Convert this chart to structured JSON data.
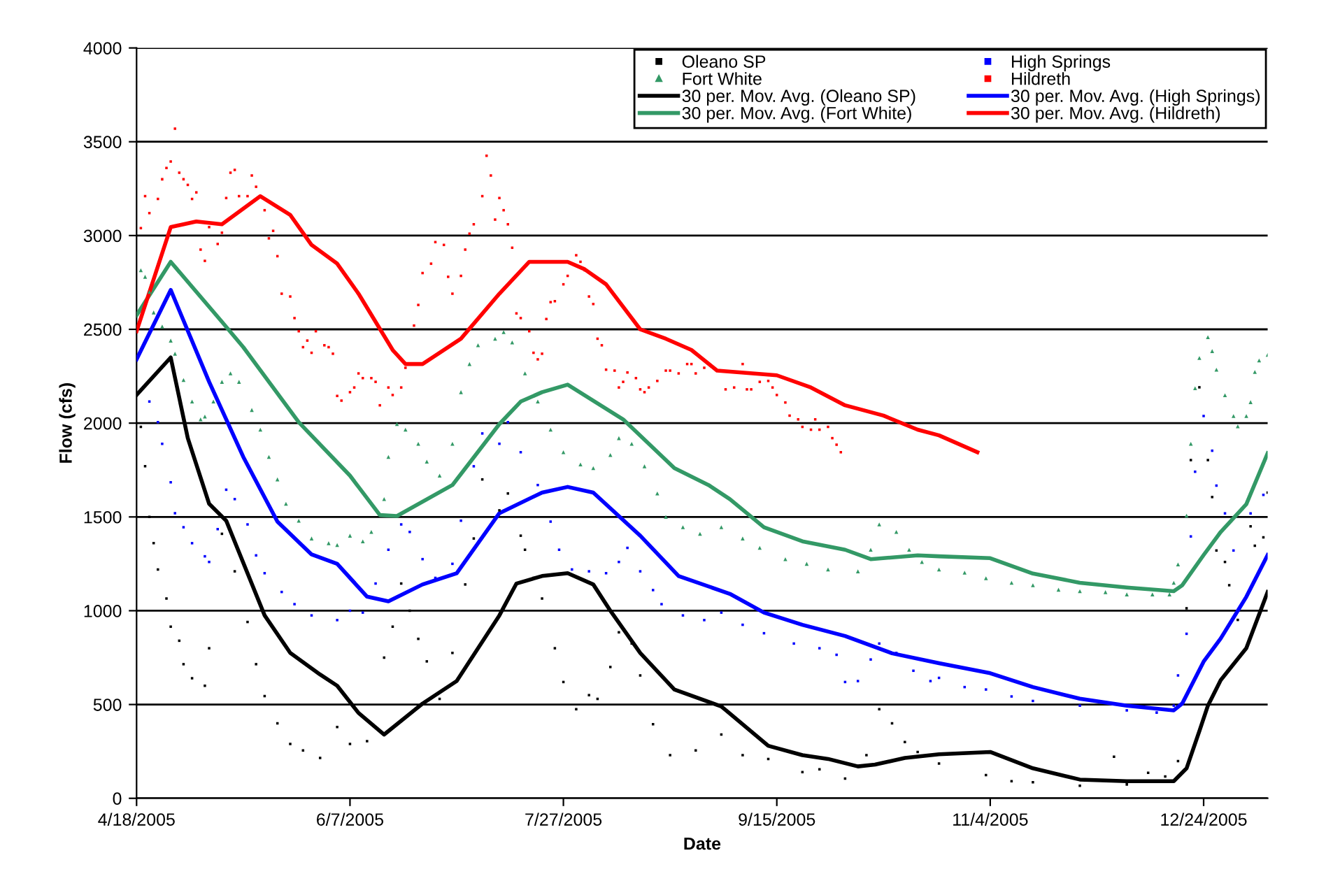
{
  "chart_data": {
    "type": "scatter",
    "xlabel": "Date",
    "ylabel": "Flow (cfs)",
    "xlim": [
      "2005-04-18",
      "2006-01-08"
    ],
    "xticks": [
      {
        "value": "2005-04-18",
        "label": "4/18/2005"
      },
      {
        "value": "2005-06-07",
        "label": "6/7/2005"
      },
      {
        "value": "2005-07-27",
        "label": "7/27/2005"
      },
      {
        "value": "2005-09-15",
        "label": "9/15/2005"
      },
      {
        "value": "2005-11-04",
        "label": "11/4/2005"
      },
      {
        "value": "2005-12-24",
        "label": "12/24/2005"
      }
    ],
    "ylim": [
      0,
      4000
    ],
    "yticks": [
      0,
      500,
      1000,
      1500,
      2000,
      2500,
      3000,
      3500,
      4000
    ],
    "grid": "y",
    "legend": "top right",
    "series": [
      {
        "name": "Oleano SP",
        "marker": "square",
        "color": "#000000",
        "x": [
          "2005-04-19",
          "2005-04-20",
          "2005-04-21",
          "2005-04-22",
          "2005-04-23",
          "2005-04-25",
          "2005-04-26",
          "2005-04-28",
          "2005-04-29",
          "2005-05-01",
          "2005-05-04",
          "2005-05-05",
          "2005-05-08",
          "2005-05-11",
          "2005-05-14",
          "2005-05-16",
          "2005-05-18",
          "2005-05-21",
          "2005-05-24",
          "2005-05-27",
          "2005-05-31",
          "2005-06-04",
          "2005-06-07",
          "2005-06-11",
          "2005-06-15",
          "2005-06-17",
          "2005-06-19",
          "2005-06-21",
          "2005-06-23",
          "2005-06-25",
          "2005-06-28",
          "2005-07-01",
          "2005-07-04",
          "2005-07-06",
          "2005-07-08",
          "2005-07-12",
          "2005-07-14",
          "2005-07-17",
          "2005-07-18",
          "2005-07-20",
          "2005-07-22",
          "2005-07-25",
          "2005-07-27",
          "2005-07-30",
          "2005-08-02",
          "2005-08-04",
          "2005-08-07",
          "2005-08-09",
          "2005-08-12",
          "2005-08-14",
          "2005-08-17",
          "2005-08-21",
          "2005-08-27",
          "2005-09-02",
          "2005-09-07",
          "2005-09-13",
          "2005-09-21",
          "2005-09-25",
          "2005-10-01",
          "2005-10-06",
          "2005-10-09",
          "2005-10-12",
          "2005-10-15",
          "2005-10-18",
          "2005-10-23",
          "2005-11-03",
          "2005-11-09",
          "2005-11-14",
          "2005-11-25",
          "2005-12-03",
          "2005-12-06",
          "2005-12-11",
          "2005-12-15",
          "2005-12-18",
          "2005-12-20",
          "2005-12-21",
          "2005-12-23",
          "2005-12-25",
          "2005-12-26",
          "2005-12-27",
          "2005-12-29",
          "2005-12-30",
          "2006-01-01",
          "2006-01-04",
          "2006-01-05",
          "2006-01-07",
          "2006-01-08"
        ],
        "values": [
          1980,
          1770,
          1500,
          1360,
          1220,
          1065,
          915,
          840,
          715,
          640,
          600,
          800,
          1410,
          1210,
          940,
          715,
          545,
          400,
          290,
          255,
          215,
          380,
          290,
          305,
          750,
          915,
          1145,
          1000,
          850,
          730,
          530,
          775,
          1140,
          1385,
          1700,
          1535,
          1625,
          1400,
          1325,
          1175,
          1065,
          800,
          620,
          475,
          550,
          530,
          700,
          885,
          825,
          655,
          395,
          230,
          255,
          340,
          230,
          210,
          140,
          155,
          105,
          230,
          475,
          400,
          300,
          247,
          185,
          124,
          91,
          86,
          67,
          222,
          74,
          136,
          116,
          198,
          1013,
          1803,
          2191,
          1803,
          1606,
          1321,
          1260,
          1136,
          951,
          1450,
          1346,
          1391,
          1630
        ]
      },
      {
        "name": "Fort White",
        "marker": "triangle",
        "color": "#339966",
        "x": [
          "2005-04-19",
          "2005-04-20",
          "2005-04-21",
          "2005-04-22",
          "2005-04-24",
          "2005-04-26",
          "2005-04-27",
          "2005-04-29",
          "2005-05-01",
          "2005-05-03",
          "2005-05-04",
          "2005-05-06",
          "2005-05-08",
          "2005-05-10",
          "2005-05-12",
          "2005-05-15",
          "2005-05-17",
          "2005-05-19",
          "2005-05-21",
          "2005-05-23",
          "2005-05-26",
          "2005-05-29",
          "2005-06-02",
          "2005-06-04",
          "2005-06-07",
          "2005-06-10",
          "2005-06-12",
          "2005-06-15",
          "2005-06-16",
          "2005-06-18",
          "2005-06-20",
          "2005-06-23",
          "2005-06-25",
          "2005-06-28",
          "2005-07-01",
          "2005-07-03",
          "2005-07-05",
          "2005-07-07",
          "2005-07-11",
          "2005-07-13",
          "2005-07-15",
          "2005-07-18",
          "2005-07-21",
          "2005-07-24",
          "2005-07-27",
          "2005-07-31",
          "2005-08-03",
          "2005-08-07",
          "2005-08-09",
          "2005-08-12",
          "2005-08-15",
          "2005-08-18",
          "2005-08-20",
          "2005-08-24",
          "2005-08-28",
          "2005-09-02",
          "2005-09-07",
          "2005-09-11",
          "2005-09-17",
          "2005-09-22",
          "2005-09-27",
          "2005-10-04",
          "2005-10-07",
          "2005-10-09",
          "2005-10-13",
          "2005-10-16",
          "2005-10-19",
          "2005-10-23",
          "2005-10-29",
          "2005-11-03",
          "2005-11-09",
          "2005-11-14",
          "2005-11-20",
          "2005-11-25",
          "2005-12-01",
          "2005-12-06",
          "2005-12-12",
          "2005-12-16",
          "2005-12-17",
          "2005-12-18",
          "2005-12-20",
          "2005-12-21",
          "2005-12-22",
          "2005-12-23",
          "2005-12-25",
          "2005-12-26",
          "2005-12-27",
          "2005-12-29",
          "2005-12-31",
          "2006-01-01",
          "2006-01-03",
          "2006-01-04",
          "2006-01-05",
          "2006-01-06",
          "2006-01-08"
        ],
        "values": [
          2815,
          2780,
          2700,
          2590,
          2515,
          2440,
          2370,
          2230,
          2115,
          2020,
          2035,
          2115,
          2220,
          2265,
          2220,
          2070,
          1965,
          1820,
          1700,
          1570,
          1480,
          1385,
          1360,
          1350,
          1400,
          1370,
          1420,
          1595,
          1820,
          1995,
          1965,
          1890,
          1795,
          1720,
          1890,
          2165,
          2315,
          2415,
          2450,
          2485,
          2430,
          2265,
          2115,
          1965,
          1845,
          1780,
          1760,
          1830,
          1920,
          1890,
          1770,
          1625,
          1500,
          1445,
          1410,
          1445,
          1385,
          1335,
          1275,
          1250,
          1220,
          1210,
          1325,
          1460,
          1420,
          1325,
          1260,
          1220,
          1203,
          1173,
          1149,
          1136,
          1112,
          1104,
          1099,
          1087,
          1087,
          1087,
          1149,
          1247,
          1507,
          1890,
          2186,
          2347,
          2458,
          2384,
          2285,
          2149,
          2038,
          1983,
          2038,
          2112,
          2273,
          2334,
          2364
        ]
      },
      {
        "name": "30 per. Mov. Avg. (Oleano SP)",
        "type": "line",
        "marker": "none",
        "color": "#000000",
        "x": [
          "2005-04-18",
          "2005-04-26",
          "2005-04-30",
          "2005-05-05",
          "2005-05-09",
          "2005-05-18",
          "2005-05-24",
          "2005-05-31",
          "2005-06-04",
          "2005-06-09",
          "2005-06-15",
          "2005-06-24",
          "2005-07-02",
          "2005-07-12",
          "2005-07-16",
          "2005-07-22",
          "2005-07-28",
          "2005-08-03",
          "2005-08-07",
          "2005-08-14",
          "2005-08-22",
          "2005-09-02",
          "2005-09-13",
          "2005-09-21",
          "2005-09-27",
          "2005-10-04",
          "2005-10-08",
          "2005-10-15",
          "2005-10-23",
          "2005-11-04",
          "2005-11-14",
          "2005-11-25",
          "2005-12-06",
          "2005-12-17",
          "2005-12-20",
          "2005-12-23",
          "2005-12-25",
          "2005-12-28",
          "2006-01-03",
          "2006-01-08"
        ],
        "values": [
          2150,
          2350,
          1920,
          1570,
          1480,
          975,
          775,
          660,
          600,
          455,
          340,
          505,
          625,
          975,
          1145,
          1185,
          1200,
          1140,
          1000,
          775,
          580,
          490,
          280,
          230,
          210,
          170,
          180,
          215,
          235,
          247,
          160,
          100,
          91,
          91,
          160,
          358,
          494,
          630,
          800,
          1100
        ]
      },
      {
        "name": "30 per. Mov. Avg. (Fort White)",
        "type": "line",
        "marker": "none",
        "color": "#339966",
        "x": [
          "2005-04-18",
          "2005-04-26",
          "2005-05-08",
          "2005-05-13",
          "2005-05-26",
          "2005-06-07",
          "2005-06-14",
          "2005-06-18",
          "2005-07-01",
          "2005-07-12",
          "2005-07-17",
          "2005-07-22",
          "2005-07-28",
          "2005-08-10",
          "2005-08-22",
          "2005-08-30",
          "2005-09-04",
          "2005-09-12",
          "2005-09-21",
          "2005-10-01",
          "2005-10-07",
          "2005-10-18",
          "2005-10-23",
          "2005-11-04",
          "2005-11-14",
          "2005-11-25",
          "2005-12-06",
          "2005-12-17",
          "2005-12-19",
          "2005-12-24",
          "2005-12-28",
          "2006-01-03",
          "2006-01-08"
        ],
        "values": [
          2575,
          2860,
          2540,
          2405,
          2005,
          1720,
          1510,
          1505,
          1670,
          1995,
          2115,
          2165,
          2205,
          2020,
          1760,
          1670,
          1595,
          1445,
          1370,
          1325,
          1275,
          1295,
          1290,
          1280,
          1198,
          1149,
          1124,
          1104,
          1136,
          1297,
          1420,
          1568,
          1840
        ]
      },
      {
        "name": "High Springs",
        "marker": "square",
        "color": "#0000ff",
        "x": [
          "2005-04-21",
          "2005-04-23",
          "2005-04-24",
          "2005-04-26",
          "2005-04-27",
          "2005-04-29",
          "2005-05-01",
          "2005-05-04",
          "2005-05-05",
          "2005-05-07",
          "2005-05-09",
          "2005-05-11",
          "2005-05-14",
          "2005-05-16",
          "2005-05-18",
          "2005-05-22",
          "2005-05-25",
          "2005-05-29",
          "2005-06-04",
          "2005-06-07",
          "2005-06-10",
          "2005-06-13",
          "2005-06-16",
          "2005-06-19",
          "2005-06-21",
          "2005-06-24",
          "2005-06-27",
          "2005-07-01",
          "2005-07-03",
          "2005-07-06",
          "2005-07-08",
          "2005-07-12",
          "2005-07-14",
          "2005-07-17",
          "2005-07-21",
          "2005-07-24",
          "2005-07-26",
          "2005-07-29",
          "2005-08-02",
          "2005-08-06",
          "2005-08-09",
          "2005-08-11",
          "2005-08-14",
          "2005-08-17",
          "2005-08-19",
          "2005-08-24",
          "2005-08-29",
          "2005-09-02",
          "2005-09-07",
          "2005-09-12",
          "2005-09-19",
          "2005-09-25",
          "2005-09-29",
          "2005-10-01",
          "2005-10-04",
          "2005-10-07",
          "2005-10-09",
          "2005-10-13",
          "2005-10-17",
          "2005-10-21",
          "2005-10-23",
          "2005-10-29",
          "2005-11-03",
          "2005-11-09",
          "2005-11-14",
          "2005-11-25",
          "2005-12-06",
          "2005-12-13",
          "2005-12-17",
          "2005-12-18",
          "2005-12-20",
          "2005-12-21",
          "2005-12-22",
          "2005-12-24",
          "2005-12-26",
          "2005-12-27",
          "2005-12-29",
          "2005-12-31",
          "2006-01-04",
          "2006-01-07"
        ],
        "values": [
          2115,
          2005,
          1890,
          1685,
          1520,
          1445,
          1360,
          1290,
          1260,
          1435,
          1645,
          1595,
          1460,
          1295,
          1200,
          1100,
          1035,
          975,
          950,
          1000,
          990,
          1145,
          1325,
          1460,
          1420,
          1275,
          1175,
          1250,
          1480,
          1770,
          1945,
          1890,
          2005,
          1845,
          1670,
          1475,
          1325,
          1220,
          1210,
          1200,
          1260,
          1335,
          1210,
          1110,
          1035,
          975,
          950,
          990,
          925,
          880,
          825,
          800,
          765,
          620,
          625,
          740,
          825,
          775,
          680,
          625,
          642,
          593,
          580,
          543,
          519,
          494,
          469,
          457,
          494,
          655,
          877,
          1396,
          1741,
          2038,
          1853,
          1667,
          1519,
          1321,
          1519,
          1618
        ]
      },
      {
        "name": "Hildreth",
        "marker": "square",
        "color": "#ff0000",
        "x": [
          "2005-04-19",
          "2005-04-20",
          "2005-04-21",
          "2005-04-23",
          "2005-04-24",
          "2005-04-25",
          "2005-04-26",
          "2005-04-27",
          "2005-04-28",
          "2005-04-29",
          "2005-04-30",
          "2005-05-01",
          "2005-05-02",
          "2005-05-03",
          "2005-05-04",
          "2005-05-05",
          "2005-05-07",
          "2005-05-08",
          "2005-05-09",
          "2005-05-10",
          "2005-05-11",
          "2005-05-12",
          "2005-05-14",
          "2005-05-15",
          "2005-05-16",
          "2005-05-18",
          "2005-05-19",
          "2005-05-20",
          "2005-05-21",
          "2005-05-22",
          "2005-05-24",
          "2005-05-25",
          "2005-05-26",
          "2005-05-27",
          "2005-05-28",
          "2005-05-29",
          "2005-05-30",
          "2005-06-01",
          "2005-06-02",
          "2005-06-03",
          "2005-06-04",
          "2005-06-05",
          "2005-06-07",
          "2005-06-08",
          "2005-06-09",
          "2005-06-10",
          "2005-06-12",
          "2005-06-13",
          "2005-06-14",
          "2005-06-16",
          "2005-06-17",
          "2005-06-19",
          "2005-06-20",
          "2005-06-22",
          "2005-06-23",
          "2005-06-24",
          "2005-06-26",
          "2005-06-27",
          "2005-06-29",
          "2005-06-30",
          "2005-07-01",
          "2005-07-03",
          "2005-07-04",
          "2005-07-05",
          "2005-07-06",
          "2005-07-08",
          "2005-07-09",
          "2005-07-10",
          "2005-07-11",
          "2005-07-12",
          "2005-07-13",
          "2005-07-14",
          "2005-07-15",
          "2005-07-16",
          "2005-07-17",
          "2005-07-19",
          "2005-07-20",
          "2005-07-21",
          "2005-07-22",
          "2005-07-23",
          "2005-07-24",
          "2005-07-25",
          "2005-07-27",
          "2005-07-28",
          "2005-07-30",
          "2005-07-31",
          "2005-08-01",
          "2005-08-02",
          "2005-08-03",
          "2005-08-04",
          "2005-08-05",
          "2005-08-06",
          "2005-08-08",
          "2005-08-09",
          "2005-08-10",
          "2005-08-11",
          "2005-08-13",
          "2005-08-14",
          "2005-08-15",
          "2005-08-16",
          "2005-08-18",
          "2005-08-20",
          "2005-08-21",
          "2005-08-23",
          "2005-08-25",
          "2005-08-26",
          "2005-08-27",
          "2005-08-29",
          "2005-09-03",
          "2005-09-05",
          "2005-09-07",
          "2005-09-08",
          "2005-09-09",
          "2005-09-11",
          "2005-09-13",
          "2005-09-14",
          "2005-09-15",
          "2005-09-17",
          "2005-09-18",
          "2005-09-20",
          "2005-09-21",
          "2005-09-23",
          "2005-09-24",
          "2005-09-25",
          "2005-09-27",
          "2005-09-28",
          "2005-09-29",
          "2005-09-30"
        ],
        "values": [
          3040,
          3210,
          3120,
          3195,
          3300,
          3360,
          3395,
          3570,
          3335,
          3300,
          3270,
          3195,
          3230,
          2925,
          2865,
          3045,
          2955,
          3015,
          3200,
          3335,
          3350,
          3210,
          3210,
          3320,
          3260,
          3135,
          2985,
          3025,
          2890,
          2690,
          2675,
          2560,
          2490,
          2405,
          2440,
          2375,
          2490,
          2415,
          2405,
          2370,
          2145,
          2120,
          2165,
          2190,
          2265,
          2240,
          2240,
          2220,
          2095,
          2190,
          2150,
          2190,
          2295,
          2520,
          2630,
          2800,
          2850,
          2965,
          2950,
          2780,
          2690,
          2785,
          2925,
          3010,
          3060,
          3210,
          3425,
          3320,
          3085,
          3200,
          3135,
          3060,
          2935,
          2585,
          2560,
          2490,
          2375,
          2340,
          2370,
          2555,
          2645,
          2650,
          2740,
          2785,
          2895,
          2860,
          2815,
          2675,
          2635,
          2450,
          2415,
          2285,
          2280,
          2190,
          2220,
          2270,
          2240,
          2180,
          2165,
          2190,
          2225,
          2280,
          2280,
          2265,
          2315,
          2315,
          2265,
          2295,
          2180,
          2190,
          2315,
          2180,
          2180,
          2220,
          2225,
          2190,
          2150,
          2110,
          2040,
          2020,
          1980,
          1965,
          2020,
          1965,
          1980,
          1920,
          1885,
          1845
        ]
      },
      {
        "name": "30 per. Mov. Avg. (High Springs)",
        "type": "line",
        "marker": "none",
        "color": "#0000ff",
        "x": [
          "2005-04-18",
          "2005-04-26",
          "2005-05-05",
          "2005-05-13",
          "2005-05-21",
          "2005-05-29",
          "2005-06-04",
          "2005-06-11",
          "2005-06-16",
          "2005-06-24",
          "2005-07-02",
          "2005-07-12",
          "2005-07-22",
          "2005-07-28",
          "2005-08-03",
          "2005-08-14",
          "2005-08-23",
          "2005-09-04",
          "2005-09-12",
          "2005-09-21",
          "2005-10-01",
          "2005-10-12",
          "2005-10-23",
          "2005-11-04",
          "2005-11-14",
          "2005-11-25",
          "2005-12-06",
          "2005-12-17",
          "2005-12-19",
          "2005-12-24",
          "2005-12-28",
          "2006-01-03",
          "2006-01-08"
        ],
        "values": [
          2340,
          2710,
          2220,
          1820,
          1475,
          1300,
          1250,
          1075,
          1050,
          1140,
          1200,
          1520,
          1630,
          1660,
          1630,
          1400,
          1185,
          1090,
          990,
          925,
          865,
          773,
          720,
          667,
          593,
          531,
          494,
          469,
          506,
          729,
          852,
          1074,
          1297
        ]
      },
      {
        "name": "30 per. Mov. Avg. (Hildreth)",
        "type": "line",
        "marker": "none",
        "color": "#ff0000",
        "x": [
          "2005-04-18",
          "2005-04-26",
          "2005-05-02",
          "2005-05-08",
          "2005-05-17",
          "2005-05-24",
          "2005-05-29",
          "2005-06-04",
          "2005-06-09",
          "2005-06-17",
          "2005-06-20",
          "2005-06-24",
          "2005-07-03",
          "2005-07-12",
          "2005-07-19",
          "2005-07-28",
          "2005-08-01",
          "2005-08-06",
          "2005-08-14",
          "2005-08-20",
          "2005-08-26",
          "2005-09-01",
          "2005-09-15",
          "2005-09-23",
          "2005-10-01",
          "2005-10-10",
          "2005-10-18",
          "2005-10-23",
          "2005-11-01"
        ],
        "values": [
          2490,
          3045,
          3075,
          3060,
          3210,
          3110,
          2950,
          2850,
          2690,
          2390,
          2315,
          2315,
          2450,
          2690,
          2860,
          2860,
          2820,
          2740,
          2500,
          2450,
          2390,
          2280,
          2255,
          2190,
          2095,
          2040,
          1965,
          1935,
          1845
        ]
      }
    ]
  }
}
